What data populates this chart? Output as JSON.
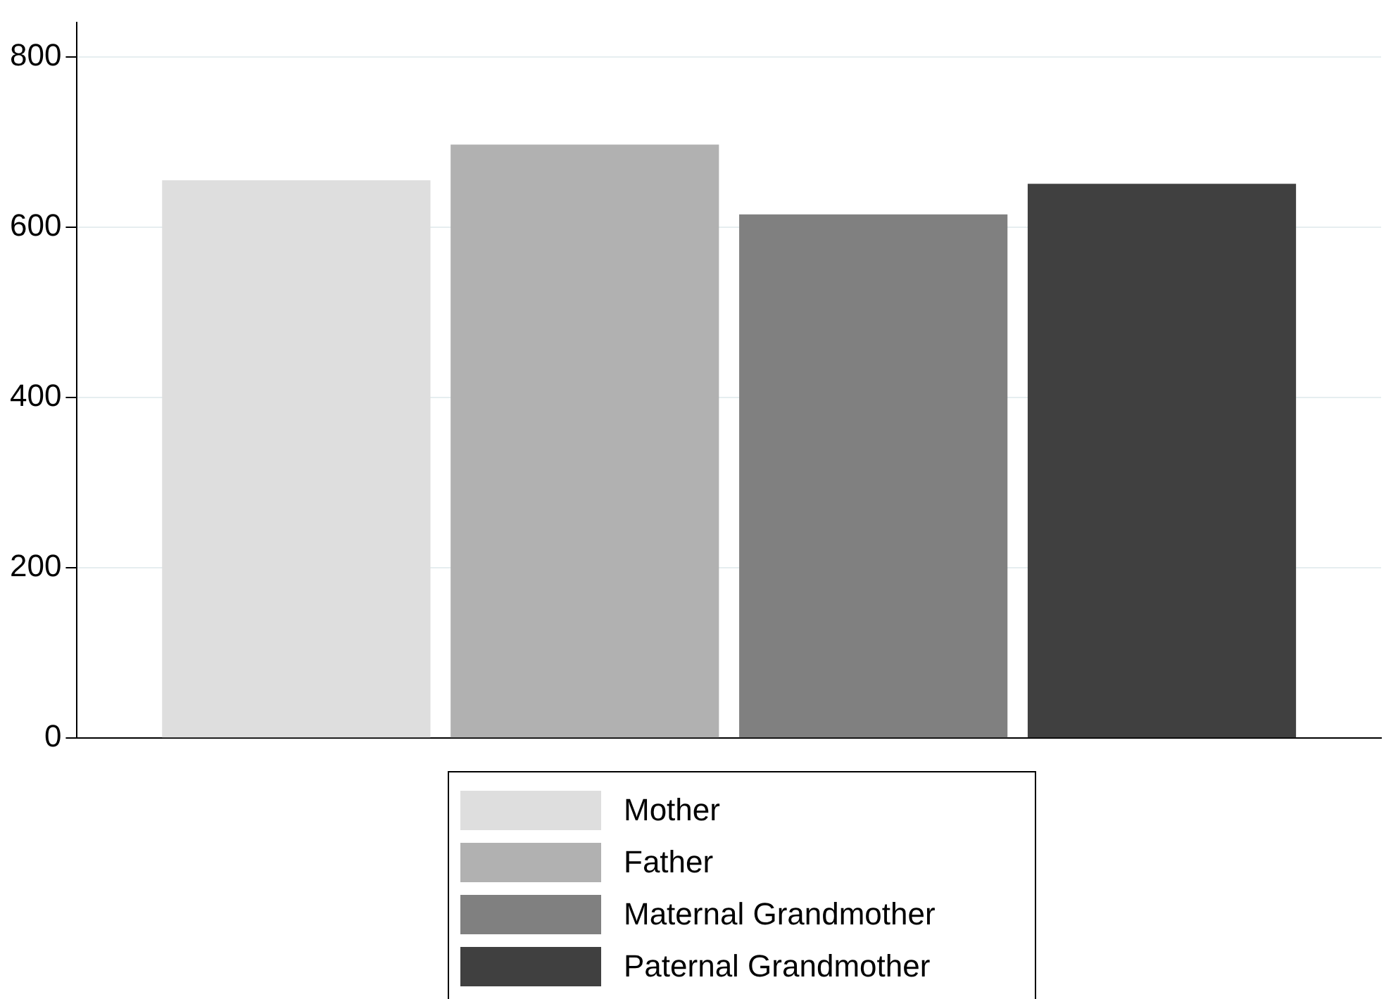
{
  "chart_data": {
    "type": "bar",
    "categories": [
      null
    ],
    "series": [
      {
        "name": "Mother",
        "color": "#dedede",
        "values": [
          655
        ]
      },
      {
        "name": "Father",
        "color": "#b1b1b1",
        "values": [
          697
        ]
      },
      {
        "name": "Maternal Grandmother",
        "color": "#808080",
        "values": [
          615
        ]
      },
      {
        "name": "Paternal Grandmother",
        "color": "#404040",
        "values": [
          651
        ]
      }
    ],
    "ylim": [
      0,
      840
    ],
    "yticks": [
      0,
      200,
      400,
      600,
      800
    ],
    "grid": "y",
    "legend": "bottom"
  }
}
